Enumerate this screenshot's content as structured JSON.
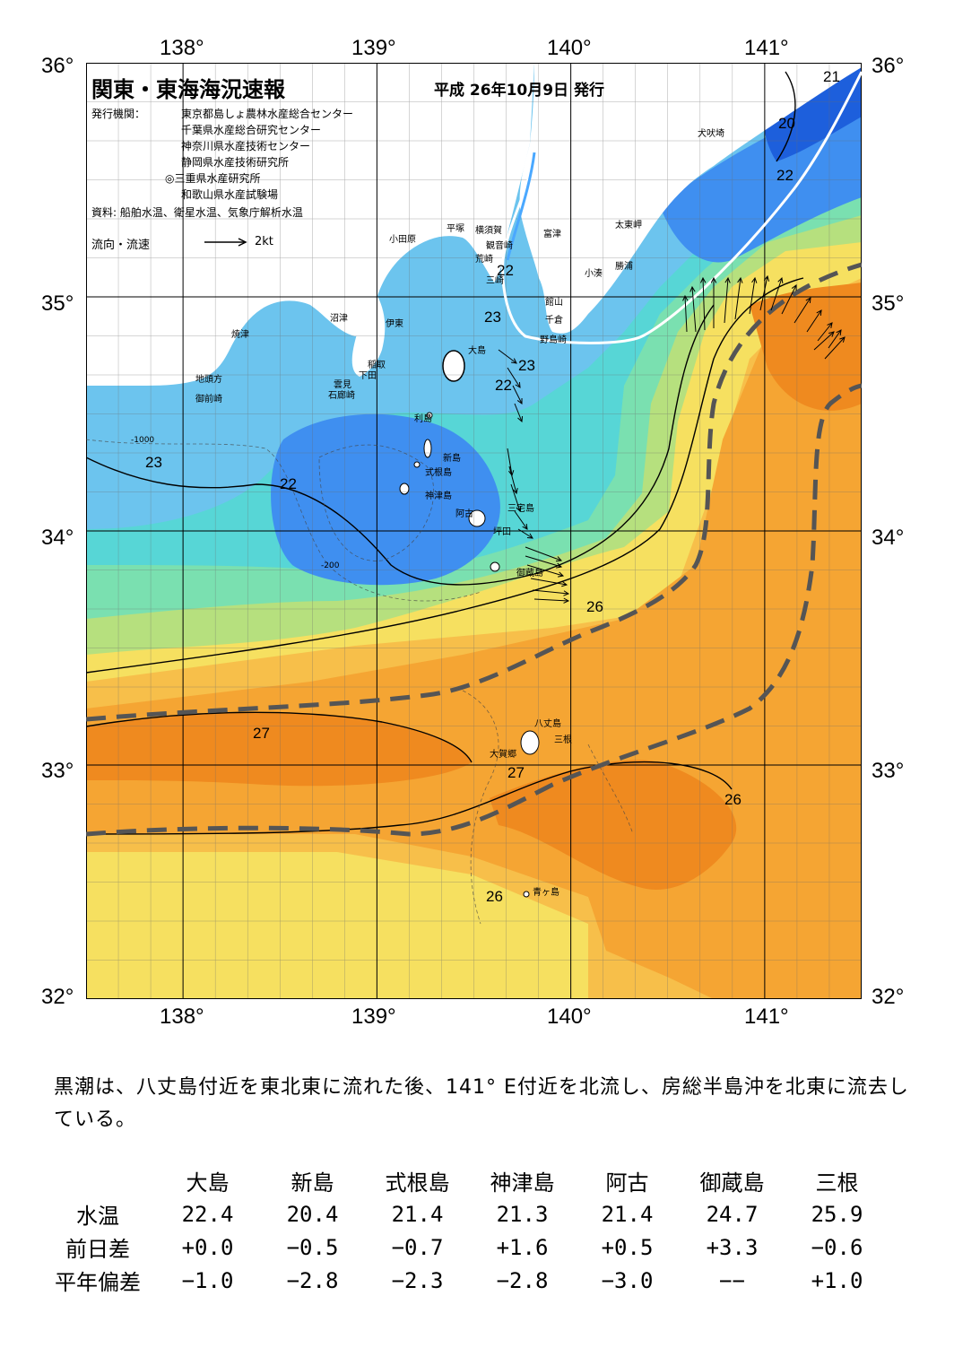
{
  "map": {
    "title": "関東・東海海況速報",
    "issue_date": "平成 26年10月9日 発行",
    "publisher_label": "発行機関：",
    "publishers": [
      "東京都島しょ農林水産総合センター",
      "千葉県水産総合研究センター",
      "神奈川県水産技術センター",
      "静岡県水産技術研究所",
      "◎三重県水産研究所",
      "和歌山県水産試験場"
    ],
    "source": "資料: 船舶水温、衛星水温、気象庁解析水温",
    "flow_label": "流向・流速",
    "flow_scale": "2kt",
    "lon_labels": [
      "138°",
      "139°",
      "140°",
      "141°"
    ],
    "lat_labels": [
      "36°",
      "35°",
      "34°",
      "33°",
      "32°"
    ],
    "lon_range": [
      137.5,
      141.5
    ],
    "lat_range": [
      32,
      36
    ],
    "places": [
      "犬吠埼",
      "太東岬",
      "勝浦",
      "小湊",
      "富津",
      "館山",
      "千倉",
      "野島崎",
      "平塚",
      "横須賀",
      "観音崎",
      "荒崎",
      "三崎",
      "小田原",
      "沼津",
      "伊東",
      "稲取",
      "下田",
      "雲見",
      "石廊崎",
      "焼津",
      "地頭方",
      "御前崎",
      "大島",
      "利島",
      "新島",
      "式根島",
      "神津島",
      "阿古",
      "三宅島",
      "坪田",
      "御蔵島",
      "八丈島",
      "三根",
      "大賀郷",
      "青ヶ島"
    ],
    "isotherm_labels": [
      "21",
      "20",
      "22",
      "22",
      "23",
      "23",
      "22",
      "23",
      "22",
      "26",
      "27",
      "27",
      "26",
      "26"
    ],
    "depth_labels": [
      "-200",
      "-1000"
    ],
    "colors": {
      "deep_blue": "#1d5fdc",
      "blue": "#3f8ff0",
      "light_blue": "#6cc4ee",
      "cyan": "#57d6d6",
      "teal_green": "#7ae0b0",
      "green": "#b6e07e",
      "yellow": "#f6e060",
      "light_orange": "#f7bf4a",
      "orange": "#f5a533",
      "deep_orange": "#ef8a1f",
      "kuroshio_axis": "#555555",
      "land": "#ffffff"
    }
  },
  "summary": "黒潮は、八丈島付近を東北東に流れた後、141° E付近を北流し、房総半島沖を北東に流去している。",
  "table": {
    "columns": [
      "大島",
      "新島",
      "式根島",
      "神津島",
      "阿古",
      "御蔵島",
      "三根"
    ],
    "rows": [
      {
        "label": "水温",
        "values": [
          "22.4",
          "20.4",
          "21.4",
          "21.3",
          "21.4",
          "24.7",
          "25.9"
        ]
      },
      {
        "label": "前日差",
        "values": [
          "+0.0",
          "−0.5",
          "−0.7",
          "+1.6",
          "+0.5",
          "+3.3",
          "−0.6"
        ]
      },
      {
        "label": "平年偏差",
        "values": [
          "−1.0",
          "−2.8",
          "−2.3",
          "−2.8",
          "−3.0",
          "−−",
          "+1.0"
        ]
      }
    ]
  }
}
